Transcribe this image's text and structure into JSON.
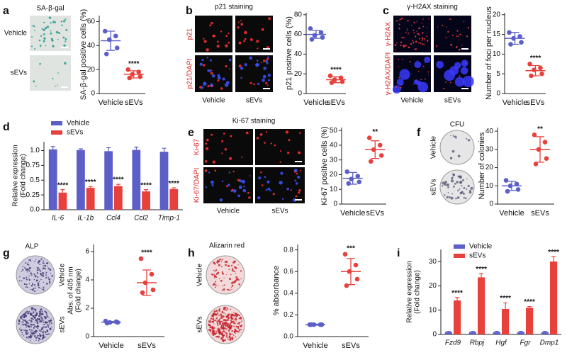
{
  "chart_data": [
    {
      "type": "dotplot",
      "label": "a",
      "image_title": "SA-β-gal",
      "image_row_labels": [
        "Vehicle",
        "sEVs"
      ],
      "ylabel": "SA-β-gal positive cells (%)",
      "ylim": [
        0,
        65
      ],
      "yticks": [
        0,
        20,
        40,
        60
      ],
      "groups": [
        {
          "name": "Vehicle",
          "color": "#5b5fc7",
          "values": [
            52,
            48,
            45,
            38,
            33
          ],
          "mean": 44,
          "sd": 8
        },
        {
          "name": "sEVs",
          "color": "#e8413c",
          "values": [
            20,
            18,
            16,
            14,
            13
          ],
          "mean": 16,
          "sd": 3
        }
      ],
      "significance": "****"
    },
    {
      "type": "dotplot",
      "label": "b",
      "image_title": "p21 staining",
      "image_row_labels": [
        "p21",
        "p21/DAPI"
      ],
      "image_col_labels": [
        "Vehicle",
        "sEVs"
      ],
      "ylabel": "p21 positive cells (%)",
      "ylim": [
        0,
        82
      ],
      "yticks": [
        0,
        20,
        40,
        60,
        80
      ],
      "groups": [
        {
          "name": "Vehicle",
          "color": "#5b5fc7",
          "values": [
            66,
            62,
            59,
            57,
            55
          ],
          "mean": 60,
          "sd": 4
        },
        {
          "name": "sEVs",
          "color": "#e8413c",
          "values": [
            18,
            16,
            14,
            12,
            11
          ],
          "mean": 14,
          "sd": 3
        }
      ],
      "significance": "****"
    },
    {
      "type": "dotplot",
      "label": "c",
      "image_title": "γ-H2AX  staining",
      "image_row_labels": [
        "γ-H2AX",
        "γ-H2AX/DAPI"
      ],
      "image_col_labels": [
        "Vehicle",
        "sEVs"
      ],
      "ylabel": "Number of foci per nucleus",
      "ylim": [
        0,
        20.5
      ],
      "yticks": [
        0,
        5,
        10,
        15,
        20
      ],
      "groups": [
        {
          "name": "Vehicle",
          "color": "#5b5fc7",
          "values": [
            15.5,
            14.5,
            14,
            13,
            12.5
          ],
          "mean": 14,
          "sd": 1.5
        },
        {
          "name": "sEVs",
          "color": "#e8413c",
          "values": [
            7.5,
            6.5,
            6,
            5,
            4.5
          ],
          "mean": 5.8,
          "sd": 1.3
        }
      ],
      "significance": "****"
    },
    {
      "type": "bar",
      "label": "d",
      "ylabel": [
        "Relative expression",
        "(Fold change)"
      ],
      "ylim": [
        0,
        1.15
      ],
      "yticks": [
        {
          "value": 0,
          "label": "0.0"
        },
        0.25,
        0.5,
        0.75,
        {
          "value": 1,
          "label": "1.0"
        }
      ],
      "categories": [
        "IL-6",
        "IL-1b",
        "Ccl4",
        "Ccl2",
        "Timp-1"
      ],
      "series": [
        {
          "name": "Vehicle",
          "color": "#5b5fc7",
          "values": [
            1.02,
            1.01,
            0.99,
            1.01,
            0.98
          ],
          "errors": [
            0.05,
            0.02,
            0.06,
            0.05,
            0.06
          ]
        },
        {
          "name": "sEVs",
          "color": "#e8413c",
          "values": [
            0.29,
            0.37,
            0.4,
            0.31,
            0.35
          ],
          "errors": [
            0.05,
            0.02,
            0.03,
            0.03,
            0.02
          ]
        }
      ],
      "annotations": [
        "****",
        "****",
        "****",
        "****",
        "****"
      ]
    },
    {
      "type": "dotplot",
      "label": "e",
      "image_title": "Ki-67 staining",
      "image_row_labels": [
        "Ki-67",
        "Ki-67/DAPI"
      ],
      "image_col_labels": [
        "Vehicle",
        "sEVs"
      ],
      "ylabel": "Ki-67 positive cells (%)",
      "ylim": [
        0,
        52
      ],
      "yticks": [
        0,
        10,
        20,
        30,
        40,
        50
      ],
      "groups": [
        {
          "name": "Vehicle",
          "color": "#5b5fc7",
          "values": [
            22,
            19,
            17,
            15,
            14
          ],
          "mean": 17.5,
          "sd": 4
        },
        {
          "name": "sEVs",
          "color": "#e8413c",
          "values": [
            45,
            40,
            37,
            33,
            29
          ],
          "mean": 37,
          "sd": 6
        }
      ],
      "significance": "**"
    },
    {
      "type": "dotplot",
      "label": "f",
      "image_title": "CFU",
      "image_row_labels": [
        "Vehicle",
        "sEVs"
      ],
      "ylabel": "Number of colonies",
      "ylim": [
        0,
        42
      ],
      "yticks": [
        0,
        10,
        20,
        30,
        40
      ],
      "groups": [
        {
          "name": "Vehicle",
          "color": "#5b5fc7",
          "values": [
            13,
            11,
            10,
            8,
            7
          ],
          "mean": 10,
          "sd": 2.5
        },
        {
          "name": "sEVs",
          "color": "#e8413c",
          "values": [
            38,
            34,
            30,
            25,
            22
          ],
          "mean": 30,
          "sd": 7
        }
      ],
      "significance": "**"
    },
    {
      "type": "dotplot",
      "label": "g",
      "image_title": "ALP",
      "image_row_labels": [
        "Vehicle",
        "sEVs"
      ],
      "ylabel": [
        "Abs. of 405 nm",
        "(Fold change)"
      ],
      "ylim": [
        0,
        6.5
      ],
      "yticks": [
        0,
        2,
        4,
        6
      ],
      "groups": [
        {
          "name": "Vehicle",
          "color": "#5b5fc7",
          "values": [
            1.1,
            1.05,
            1.0,
            1.0,
            0.95
          ],
          "mean": 1.02,
          "sd": 0.05
        },
        {
          "name": "sEVs",
          "color": "#e8413c",
          "values": [
            5.5,
            4.4,
            3.8,
            3.3,
            3.1
          ],
          "mean": 3.8,
          "sd": 0.9
        }
      ],
      "significance": "****"
    },
    {
      "type": "dotplot",
      "label": "h",
      "image_title": "Alizarin red",
      "image_row_labels": [
        "Vehicle",
        "sEVs"
      ],
      "ylabel": "% absorbance",
      "ylim": [
        0,
        0.85
      ],
      "yticks": [
        {
          "value": 0,
          "label": "0.0"
        },
        0.2,
        0.4,
        0.6,
        0.8
      ],
      "groups": [
        {
          "name": "Vehicle",
          "color": "#5b5fc7",
          "values": [
            0.11,
            0.11,
            0.11,
            0.11,
            0.11
          ],
          "mean": 0.11,
          "sd": 0.005
        },
        {
          "name": "sEVs",
          "color": "#e8413c",
          "values": [
            0.76,
            0.66,
            0.6,
            0.53,
            0.47
          ],
          "mean": 0.6,
          "sd": 0.12
        }
      ],
      "significance": "***"
    },
    {
      "type": "bar",
      "label": "i",
      "ylabel": [
        "Relative expression",
        "(Fold change)"
      ],
      "ylim": [
        0,
        35
      ],
      "yticks": [
        0,
        10,
        20,
        30
      ],
      "categories": [
        "Fzd9",
        "Rbpj",
        "Hgf",
        "Fgr",
        "Dmp1"
      ],
      "series": [
        {
          "name": "Vehicle",
          "color": "#5b5fc7",
          "values": [
            1,
            1,
            1,
            1,
            1
          ],
          "errors": [
            0.3,
            0.3,
            0.3,
            0.3,
            0.3
          ]
        },
        {
          "name": "sEVs",
          "color": "#e8413c",
          "values": [
            14,
            23.5,
            10.5,
            11,
            30
          ],
          "errors": [
            1.2,
            1.5,
            2.5,
            0.5,
            2
          ]
        }
      ],
      "annotations": [
        "****",
        "****",
        "****",
        "****",
        "****"
      ]
    }
  ]
}
